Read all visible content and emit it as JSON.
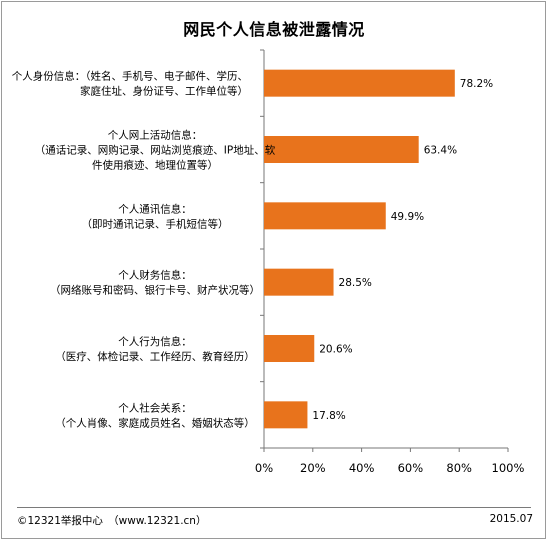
{
  "chart_data": {
    "type": "bar",
    "orientation": "horizontal",
    "title": "网民个人信息被泄露情况",
    "categories": [
      [
        "个人身份信息：（姓名、手机号、电子邮件、学历、",
        "家庭住址、身份证号、工作单位等）"
      ],
      [
        "个人网上活动信息：",
        "（通话记录、网购记录、网站浏览痕迹、IP地址、软",
        "件使用痕迹、地理位置等）"
      ],
      [
        "个人通讯信息：",
        "（即时通讯记录、手机短信等）"
      ],
      [
        "个人财务信息：",
        "（网络账号和密码、银行卡号、财产状况等）"
      ],
      [
        "个人行为信息：",
        "（医疗、体检记录、工作经历、教育经历）"
      ],
      [
        "个人社会关系：",
        "（个人肖像、家庭成员姓名、婚姻状态等）"
      ]
    ],
    "values": [
      78.2,
      63.4,
      49.9,
      28.5,
      20.6,
      17.8
    ],
    "value_labels": [
      "78.2%",
      "63.4%",
      "49.9%",
      "28.5%",
      "20.6%",
      "17.8%"
    ],
    "xlim": [
      0,
      100
    ],
    "x_ticks": [
      "0%",
      "20%",
      "40%",
      "60%",
      "80%",
      "100%"
    ],
    "grid": false,
    "bar_color": "#E8731C"
  },
  "footer": {
    "source": "©12321举报中心　（www.12321.cn）",
    "date": "2015.07"
  }
}
